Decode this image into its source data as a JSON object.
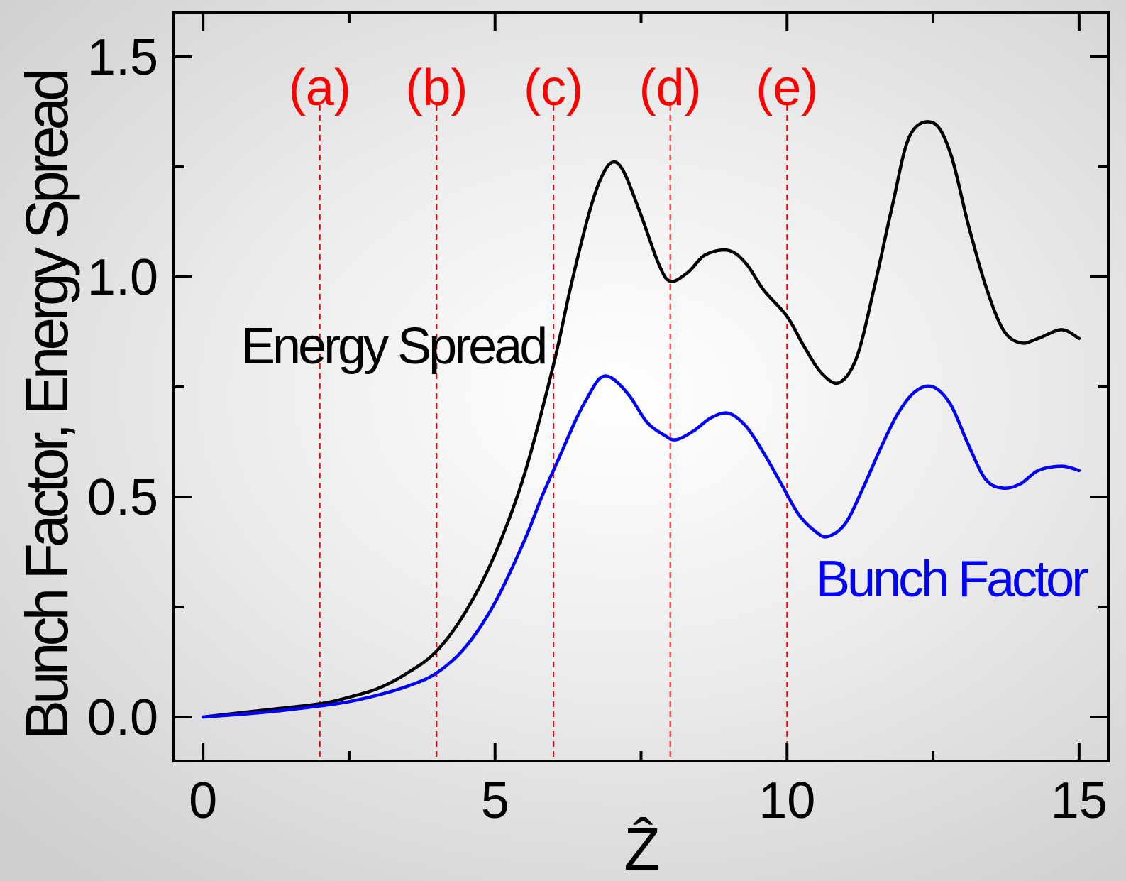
{
  "chart_data": {
    "type": "line",
    "xlabel": "Ẑ",
    "ylabel": "Bunch Factor, Energy Spread",
    "xlim": [
      -0.5,
      15.5
    ],
    "ylim": [
      -0.1,
      1.6
    ],
    "x_ticks": [
      0,
      5,
      10,
      15
    ],
    "x_tick_labels": [
      "0",
      "5",
      "10",
      "15"
    ],
    "y_ticks": [
      0.0,
      0.5,
      1.0,
      1.5
    ],
    "y_tick_labels": [
      "0.0",
      "0.5",
      "1.0",
      "1.5"
    ],
    "grid": false,
    "vertical_markers": [
      {
        "label": "(a)",
        "x": 2,
        "color": "#ff0000"
      },
      {
        "label": "(b)",
        "x": 4,
        "color": "#ff0000"
      },
      {
        "label": "(c)",
        "x": 6,
        "color": "#ff0000"
      },
      {
        "label": "(d)",
        "x": 8,
        "color": "#ff0000"
      },
      {
        "label": "(e)",
        "x": 10,
        "color": "#ff0000"
      }
    ],
    "series": [
      {
        "name": "Energy Spread",
        "color": "#000000",
        "x": [
          0,
          1,
          2,
          2.5,
          3,
          3.5,
          4,
          4.5,
          5,
          5.5,
          6,
          6.3,
          6.6,
          6.8,
          7.0,
          7.2,
          7.5,
          7.8,
          8.0,
          8.3,
          8.6,
          9.0,
          9.3,
          9.6,
          10.0,
          10.3,
          10.6,
          10.9,
          11.2,
          11.5,
          11.8,
          12.1,
          12.5,
          12.8,
          13.1,
          13.4,
          13.7,
          14.0,
          14.3,
          14.7,
          15.0
        ],
        "y": [
          0,
          0.015,
          0.03,
          0.045,
          0.065,
          0.1,
          0.15,
          0.24,
          0.37,
          0.55,
          0.8,
          0.98,
          1.14,
          1.22,
          1.26,
          1.24,
          1.14,
          1.03,
          0.99,
          1.01,
          1.05,
          1.06,
          1.03,
          0.97,
          0.91,
          0.84,
          0.78,
          0.76,
          0.82,
          0.98,
          1.16,
          1.32,
          1.35,
          1.28,
          1.12,
          0.98,
          0.88,
          0.85,
          0.86,
          0.88,
          0.86
        ]
      },
      {
        "name": "Bunch Factor",
        "color": "#0000ff",
        "x": [
          0,
          1,
          2,
          2.5,
          3,
          3.5,
          4,
          4.5,
          5,
          5.5,
          5.8,
          6.1,
          6.4,
          6.6,
          6.8,
          7.0,
          7.3,
          7.6,
          7.9,
          8.1,
          8.4,
          8.7,
          9.0,
          9.3,
          9.6,
          9.9,
          10.2,
          10.5,
          10.7,
          11.0,
          11.3,
          11.6,
          11.9,
          12.2,
          12.5,
          12.8,
          13.1,
          13.4,
          13.7,
          14.0,
          14.3,
          14.7,
          15.0
        ],
        "y": [
          0,
          0.01,
          0.025,
          0.035,
          0.05,
          0.07,
          0.1,
          0.16,
          0.26,
          0.4,
          0.5,
          0.59,
          0.68,
          0.73,
          0.77,
          0.77,
          0.73,
          0.67,
          0.64,
          0.63,
          0.65,
          0.68,
          0.69,
          0.66,
          0.6,
          0.53,
          0.46,
          0.42,
          0.41,
          0.44,
          0.52,
          0.61,
          0.69,
          0.74,
          0.75,
          0.71,
          0.62,
          0.54,
          0.52,
          0.53,
          0.56,
          0.57,
          0.56
        ]
      }
    ]
  }
}
